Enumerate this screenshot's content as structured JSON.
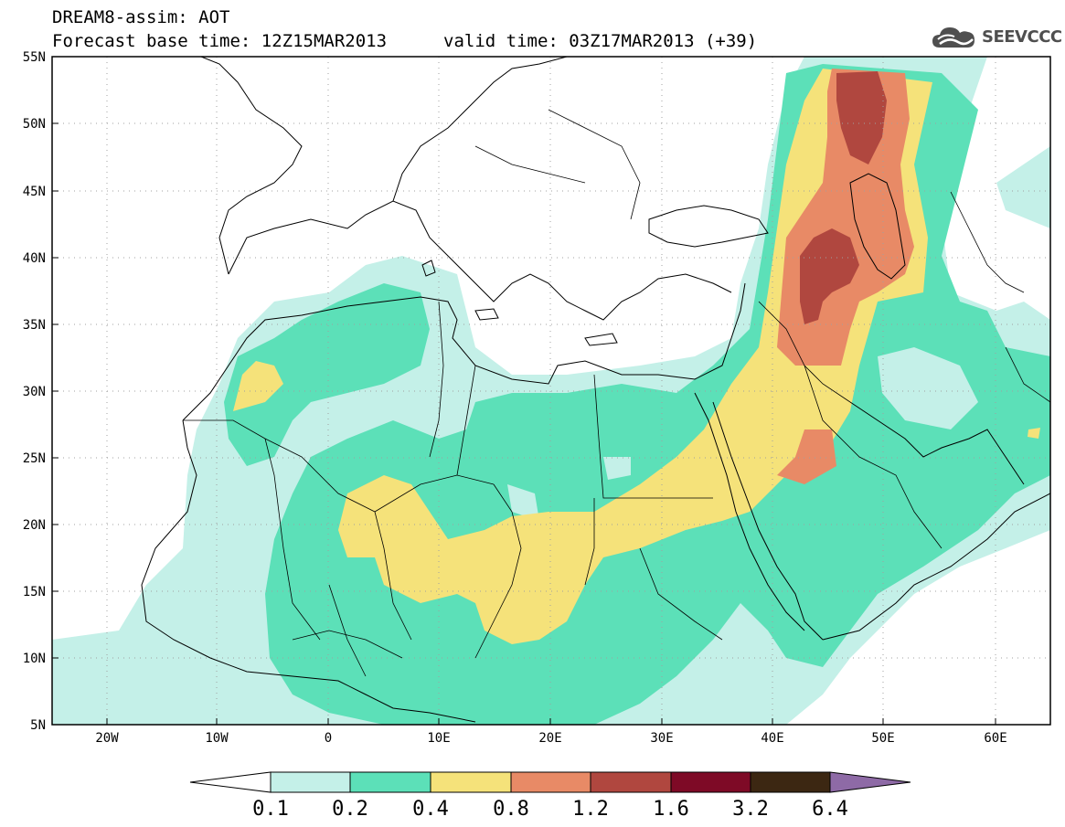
{
  "header": {
    "line1": "DREAM8-assim: AOT",
    "line2": "Forecast base time: 12Z15MAR2013",
    "valid": "valid time: 03Z17MAR2013 (+39)"
  },
  "logo": {
    "text": "SEEVCCC",
    "icon": "cloud-icon",
    "color": "#4f4f4f"
  },
  "map": {
    "lat_labels": [
      "55N",
      "50N",
      "45N",
      "40N",
      "35N",
      "30N",
      "25N",
      "20N",
      "15N",
      "10N",
      "5N"
    ],
    "lon_labels": [
      "20W",
      "10W",
      "0",
      "10E",
      "20E",
      "30E",
      "40E",
      "50E",
      "60E"
    ],
    "gridlines": "dotted"
  },
  "colorbar": {
    "labels": [
      "0.1",
      "0.2",
      "0.4",
      "0.8",
      "1.2",
      "1.6",
      "3.2",
      "6.4"
    ],
    "colors": [
      "#c4f0e8",
      "#5ce0b8",
      "#f5e27a",
      "#e88a66",
      "#b0473f",
      "#7e0a26",
      "#3c2712",
      "#8e6aa6"
    ],
    "under_color": "#ffffff",
    "over_color": "#8e6aa6"
  }
}
